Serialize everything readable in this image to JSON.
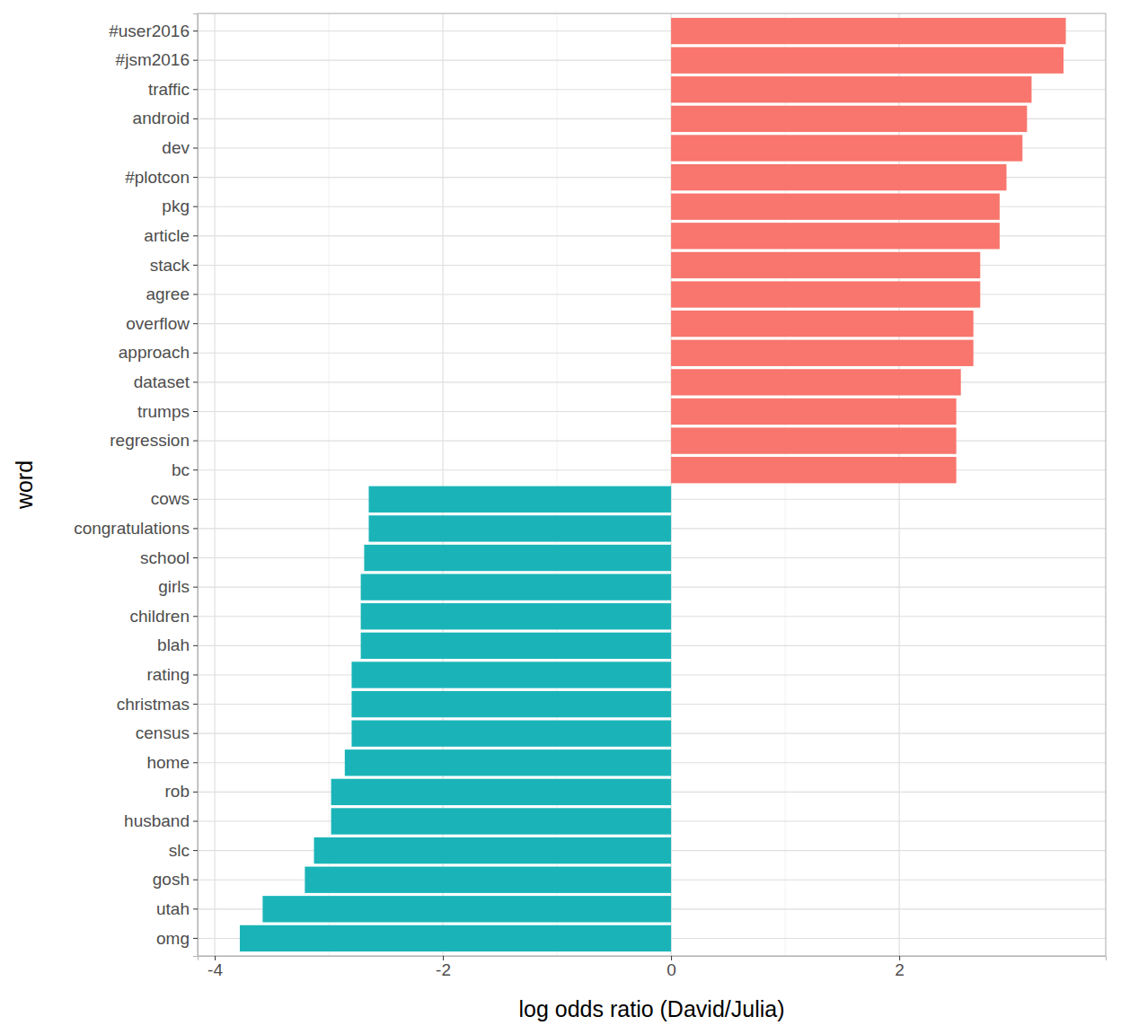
{
  "chart_data": {
    "type": "bar",
    "orientation": "horizontal",
    "grid": true,
    "x_label": "log odds ratio (David/Julia)",
    "y_label": "word",
    "categories": [
      "#user2016",
      "#jsm2016",
      "traffic",
      "android",
      "dev",
      "#plotcon",
      "pkg",
      "article",
      "stack",
      "agree",
      "overflow",
      "approach",
      "dataset",
      "trumps",
      "regression",
      "bc",
      "cows",
      "congratulations",
      "school",
      "girls",
      "children",
      "blah",
      "rating",
      "christmas",
      "census",
      "home",
      "rob",
      "husband",
      "slc",
      "gosh",
      "utah",
      "omg"
    ],
    "values": [
      3.46,
      3.44,
      3.16,
      3.12,
      3.08,
      2.94,
      2.88,
      2.88,
      2.71,
      2.71,
      2.65,
      2.65,
      2.54,
      2.5,
      2.5,
      2.5,
      -2.65,
      -2.65,
      -2.69,
      -2.72,
      -2.72,
      -2.72,
      -2.8,
      -2.8,
      -2.8,
      -2.86,
      -2.98,
      -2.98,
      -3.13,
      -3.21,
      -3.58,
      -3.78
    ],
    "colors": [
      "#F8766D",
      "#F8766D",
      "#F8766D",
      "#F8766D",
      "#F8766D",
      "#F8766D",
      "#F8766D",
      "#F8766D",
      "#F8766D",
      "#F8766D",
      "#F8766D",
      "#F8766D",
      "#F8766D",
      "#F8766D",
      "#F8766D",
      "#F8766D",
      "#1AB4B8",
      "#1AB4B8",
      "#1AB4B8",
      "#1AB4B8",
      "#1AB4B8",
      "#1AB4B8",
      "#1AB4B8",
      "#1AB4B8",
      "#1AB4B8",
      "#1AB4B8",
      "#1AB4B8",
      "#1AB4B8",
      "#1AB4B8",
      "#1AB4B8",
      "#1AB4B8",
      "#1AB4B8"
    ],
    "xlim": [
      -4.15,
      3.81
    ],
    "xticks": [
      -4,
      -2,
      0,
      2
    ]
  }
}
